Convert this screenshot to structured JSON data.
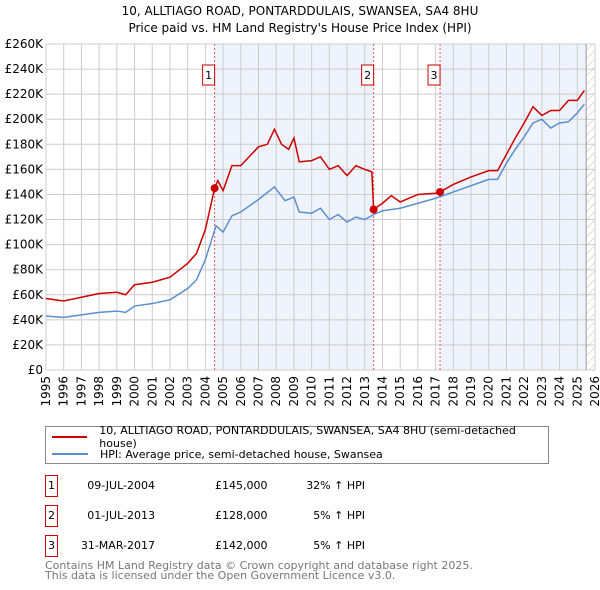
{
  "chart_data": {
    "type": "line",
    "title": "10, ALLTIAGO ROAD, PONTARDDULAIS, SWANSEA, SA4 8HU",
    "subtitle": "Price paid vs. HM Land Registry's House Price Index (HPI)",
    "xlim": [
      1995,
      2026
    ],
    "ylim": [
      0,
      260000
    ],
    "x_ticks": [
      "1995",
      "1996",
      "1997",
      "1998",
      "1999",
      "2000",
      "2001",
      "2002",
      "2003",
      "2004",
      "2005",
      "2006",
      "2007",
      "2008",
      "2009",
      "2010",
      "2011",
      "2012",
      "2013",
      "2014",
      "2015",
      "2016",
      "2017",
      "2018",
      "2019",
      "2020",
      "2021",
      "2022",
      "2023",
      "2024",
      "2025",
      "2026"
    ],
    "y_ticks": [
      "£0",
      "£20K",
      "£40K",
      "£60K",
      "£80K",
      "£100K",
      "£120K",
      "£140K",
      "£160K",
      "£180K",
      "£200K",
      "£220K",
      "£240K",
      "£260K"
    ],
    "grid": true,
    "series": [
      {
        "name": "10, ALLTIAGO ROAD, PONTARDDULAIS, SWANSEA, SA4 8HU (semi-detached house)",
        "color": "#cc0000",
        "x": [
          1995,
          1996,
          1997,
          1998,
          1999,
          1999.5,
          2000,
          2001,
          2002,
          2003,
          2003.5,
          2004,
          2004.52,
          2004.7,
          2005,
          2005.5,
          2006,
          2007,
          2007.5,
          2007.9,
          2008.3,
          2008.7,
          2009,
          2009.3,
          2010,
          2010.5,
          2011,
          2011.5,
          2012,
          2012.5,
          2013,
          2013.4,
          2013.5,
          2014,
          2014.5,
          2015,
          2016,
          2017,
          2017.25,
          2018,
          2019,
          2020,
          2020.5,
          2021,
          2021.5,
          2022,
          2022.5,
          2023,
          2023.5,
          2024,
          2024.5,
          2025,
          2025.4
        ],
        "y": [
          57000,
          55000,
          58000,
          61000,
          62000,
          60000,
          68000,
          70000,
          74000,
          85000,
          93000,
          112000,
          145000,
          151000,
          143000,
          163000,
          163000,
          178000,
          180000,
          192000,
          180000,
          176000,
          185000,
          166000,
          167000,
          170000,
          160000,
          163000,
          155000,
          163000,
          160000,
          158000,
          128000,
          133000,
          139000,
          134000,
          140000,
          141000,
          142000,
          148000,
          154000,
          159000,
          159000,
          172000,
          185000,
          197000,
          210000,
          203000,
          207000,
          207000,
          215000,
          215000,
          223000
        ]
      },
      {
        "name": "HPI: Average price, semi-detached house, Swansea",
        "color": "#5b8fd0",
        "x": [
          1995,
          1996,
          1997,
          1998,
          1999,
          1999.5,
          2000,
          2001,
          2002,
          2003,
          2003.5,
          2004,
          2004.6,
          2005,
          2005.5,
          2006,
          2007,
          2007.9,
          2008.5,
          2009,
          2009.3,
          2010,
          2010.5,
          2011,
          2011.5,
          2012,
          2012.5,
          2013,
          2013.5,
          2014,
          2015,
          2016,
          2017,
          2018,
          2019,
          2020,
          2020.5,
          2021,
          2021.5,
          2022,
          2022.5,
          2023,
          2023.5,
          2024,
          2024.5,
          2025,
          2025.4
        ],
        "y": [
          43000,
          42000,
          44000,
          46000,
          47000,
          46000,
          51000,
          53000,
          56000,
          65000,
          72000,
          88000,
          115000,
          110000,
          123000,
          126000,
          136000,
          146000,
          135000,
          138000,
          126000,
          125000,
          129000,
          120000,
          124000,
          118000,
          122000,
          120000,
          124000,
          127000,
          129000,
          133000,
          137000,
          142000,
          147000,
          152000,
          152000,
          165000,
          176000,
          186000,
          197000,
          200000,
          193000,
          197000,
          198000,
          205000,
          212000
        ]
      }
    ],
    "sales": [
      {
        "label": "1",
        "x": 2004.52,
        "date": "09-JUL-2004",
        "price": 145000,
        "price_text": "£145,000",
        "hpi": "32% ↑ HPI"
      },
      {
        "label": "2",
        "x": 2013.5,
        "date": "01-JUL-2013",
        "price": 128000,
        "price_text": "£128,000",
        "hpi": "5% ↑ HPI"
      },
      {
        "label": "3",
        "x": 2017.25,
        "date": "31-MAR-2017",
        "price": 142000,
        "price_text": "£142,000",
        "hpi": "5% ↑ HPI"
      }
    ],
    "shaded_ranges": [
      [
        2004.52,
        2013.5
      ],
      [
        2017.25,
        2025.5
      ]
    ],
    "forecast_start": 2025.5,
    "legend_placement": "below"
  },
  "footer": {
    "line1": "Contains HM Land Registry data © Crown copyright and database right 2025.",
    "line2": "This data is licensed under the Open Government Licence v3.0."
  }
}
